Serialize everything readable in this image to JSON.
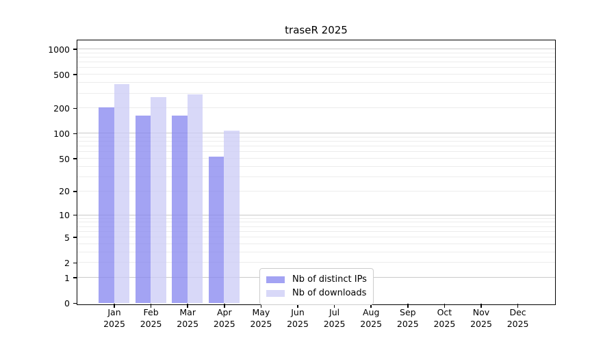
{
  "title": "traseR 2025",
  "colors": {
    "ips": "rgba(132,132,239,0.75)",
    "downloads": "rgba(203,203,246,0.75)",
    "grid_minor": "#ececec",
    "grid_major": "#c9c9c9",
    "axis": "#000000",
    "legend_border": "#cccccc"
  },
  "legend": {
    "items": [
      {
        "label": "Nb of distinct IPs",
        "key": "ips"
      },
      {
        "label": "Nb of downloads",
        "key": "downloads"
      }
    ]
  },
  "chart_data": {
    "type": "bar",
    "title": "traseR 2025",
    "categories": [
      "Jan",
      "Feb",
      "Mar",
      "Apr",
      "May",
      "Jun",
      "Jul",
      "Aug",
      "Sep",
      "Oct",
      "Nov",
      "Dec"
    ],
    "category_year": "2025",
    "series": [
      {
        "name": "Nb of distinct IPs",
        "key": "ips",
        "values": [
          202,
          161,
          163,
          53,
          0,
          0,
          0,
          0,
          0,
          0,
          0,
          0
        ]
      },
      {
        "name": "Nb of downloads",
        "key": "downloads",
        "values": [
          380,
          268,
          291,
          107,
          0,
          0,
          0,
          0,
          0,
          0,
          0,
          0
        ]
      }
    ],
    "xlabel": "",
    "ylabel": "",
    "yscale": "log10(value+1)",
    "yticks": [
      0,
      1,
      2,
      5,
      10,
      20,
      50,
      100,
      200,
      500,
      1000
    ],
    "ylim": [
      0,
      1001
    ],
    "grid": "both",
    "grid_major_at": [
      1,
      10,
      100,
      1000
    ],
    "legend_position": "inside-lower-center"
  }
}
